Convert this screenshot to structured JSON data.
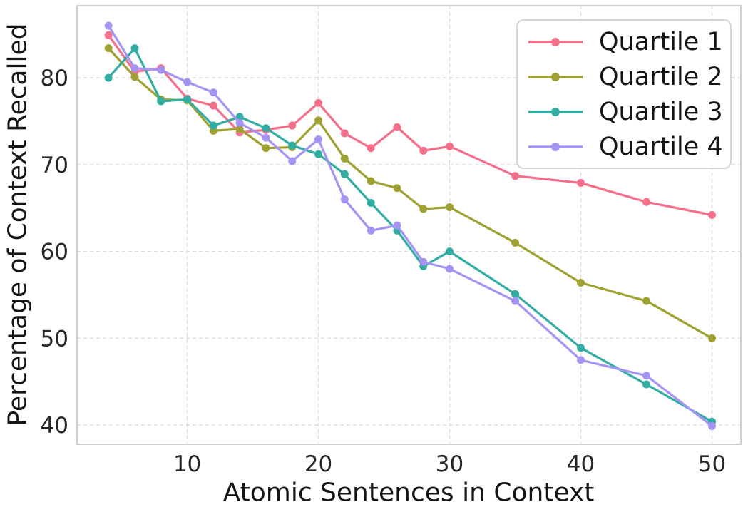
{
  "chart_data": {
    "type": "line",
    "title": "",
    "xlabel": "Atomic Sentences in Context",
    "ylabel": "Percentage of Context Recalled",
    "x": [
      4,
      6,
      8,
      10,
      12,
      14,
      16,
      18,
      20,
      22,
      24,
      26,
      28,
      30,
      35,
      40,
      45,
      50
    ],
    "series": [
      {
        "name": "Quartile 1",
        "color": "#f4708a",
        "values": [
          84.9,
          80.7,
          81.1,
          77.6,
          76.8,
          73.7,
          74.0,
          74.5,
          77.1,
          73.6,
          71.9,
          74.3,
          71.6,
          72.1,
          68.7,
          67.9,
          65.7,
          64.2
        ]
      },
      {
        "name": "Quartile 2",
        "color": "#9fa233",
        "values": [
          83.4,
          80.1,
          77.5,
          77.4,
          73.9,
          74.1,
          71.9,
          72.0,
          75.1,
          70.7,
          68.1,
          67.3,
          64.9,
          65.1,
          61.0,
          56.4,
          54.3,
          50.0
        ]
      },
      {
        "name": "Quartile 3",
        "color": "#31ada3",
        "values": [
          80.0,
          83.4,
          77.3,
          77.5,
          74.5,
          75.5,
          74.2,
          72.2,
          71.2,
          68.9,
          65.6,
          62.4,
          58.3,
          60.0,
          55.1,
          48.9,
          44.7,
          40.4
        ]
      },
      {
        "name": "Quartile 4",
        "color": "#a694f4",
        "values": [
          86.0,
          81.1,
          80.9,
          79.5,
          78.3,
          74.8,
          73.1,
          70.4,
          72.9,
          66.0,
          62.4,
          63.0,
          58.8,
          58.0,
          54.3,
          47.5,
          45.7,
          39.9
        ]
      }
    ],
    "xticks": [
      10,
      20,
      30,
      40,
      50
    ],
    "yticks": [
      40,
      50,
      60,
      70,
      80
    ],
    "xlim": [
      1.6,
      52.2
    ],
    "ylim": [
      37.8,
      88.3
    ],
    "grid": "dashed",
    "grid_color": "#dcdcdc",
    "spine_color": "#cfcfcf",
    "legend_position": "upper right",
    "marker": "circle",
    "line_width": 3.2,
    "marker_radius": 5.5
  }
}
